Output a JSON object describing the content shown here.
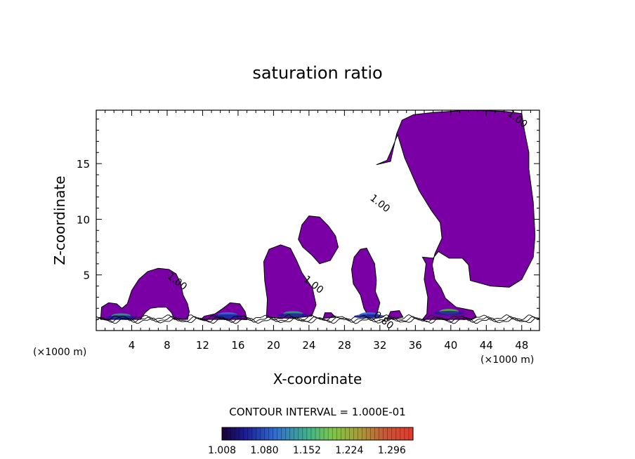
{
  "chart_data": {
    "type": "contour",
    "title": "saturation ratio",
    "xlabel": "X-coordinate",
    "ylabel": "Z-coordinate",
    "x_unit": "(×1000 m)",
    "z_unit": "(×1000 m)",
    "xlim": [
      0,
      50
    ],
    "ylim": [
      0,
      19.8
    ],
    "x_ticks": [
      4,
      8,
      12,
      16,
      20,
      24,
      28,
      32,
      36,
      40,
      44,
      48
    ],
    "y_ticks": [
      5,
      10,
      15
    ],
    "contour_interval_text": "CONTOUR INTERVAL = 1.000E-01",
    "contour_labels": [
      {
        "text": "1.00",
        "x": 8.9,
        "z": 4.2
      },
      {
        "text": "1.00",
        "x": 24.3,
        "z": 3.9
      },
      {
        "text": "1.00",
        "x": 31.8,
        "z": 11.2
      },
      {
        "text": "1.00",
        "x": 47.3,
        "z": 18.8
      },
      {
        "text": "0.80",
        "x": 32.2,
        "z": 0.7
      }
    ],
    "colorbar": {
      "min": 1.008,
      "max": 1.332,
      "tick_labels": [
        "1.008",
        "1.080",
        "1.152",
        "1.224",
        "1.296"
      ],
      "fill_color": "#7a00a6"
    },
    "regions": [
      {
        "name": "cloud-1",
        "outline": [
          [
            0.5,
            1.0
          ],
          [
            0.6,
            2.1
          ],
          [
            1.4,
            2.5
          ],
          [
            2.3,
            2.4
          ],
          [
            2.9,
            2.0
          ],
          [
            3.5,
            2.4
          ],
          [
            4.0,
            3.6
          ],
          [
            4.8,
            4.6
          ],
          [
            5.8,
            5.3
          ],
          [
            7.0,
            5.6
          ],
          [
            8.2,
            5.5
          ],
          [
            9.0,
            5.1
          ],
          [
            9.5,
            4.3
          ],
          [
            9.8,
            3.2
          ],
          [
            10.3,
            2.4
          ],
          [
            10.5,
            1.7
          ],
          [
            10.3,
            1.0
          ],
          [
            8.8,
            1.0
          ],
          [
            8.5,
            1.6
          ],
          [
            7.9,
            2.1
          ],
          [
            7.0,
            2.1
          ],
          [
            6.1,
            2.0
          ],
          [
            5.5,
            1.6
          ],
          [
            5.0,
            1.0
          ]
        ]
      },
      {
        "name": "cloud-2",
        "outline": [
          [
            11.8,
            1.0
          ],
          [
            12.2,
            1.3
          ],
          [
            13.4,
            1.5
          ],
          [
            14.3,
            2.0
          ],
          [
            15.1,
            2.5
          ],
          [
            16.2,
            2.4
          ],
          [
            16.8,
            1.7
          ],
          [
            17.0,
            1.0
          ]
        ]
      },
      {
        "name": "cloud-3",
        "outline": [
          [
            19.2,
            1.2
          ],
          [
            19.3,
            2.8
          ],
          [
            19.0,
            4.5
          ],
          [
            18.9,
            6.2
          ],
          [
            19.5,
            7.3
          ],
          [
            20.8,
            7.7
          ],
          [
            21.9,
            7.4
          ],
          [
            22.6,
            6.3
          ],
          [
            23.2,
            5.2
          ],
          [
            24.4,
            3.8
          ],
          [
            24.8,
            2.3
          ],
          [
            24.3,
            1.3
          ],
          [
            22.0,
            1.1
          ]
        ]
      },
      {
        "name": "cloud-4",
        "outline": [
          [
            22.8,
            8.2
          ],
          [
            23.2,
            9.5
          ],
          [
            24.0,
            10.3
          ],
          [
            25.2,
            10.2
          ],
          [
            26.2,
            9.4
          ],
          [
            27.0,
            8.5
          ],
          [
            27.3,
            7.5
          ],
          [
            26.4,
            6.3
          ],
          [
            25.2,
            6.0
          ],
          [
            24.3,
            6.8
          ],
          [
            23.3,
            7.5
          ]
        ]
      },
      {
        "name": "cloud-5",
        "outline": [
          [
            28.8,
            5.5
          ],
          [
            29.0,
            4.2
          ],
          [
            29.8,
            3.2
          ],
          [
            30.2,
            2.0
          ],
          [
            30.7,
            1.3
          ],
          [
            31.6,
            1.3
          ],
          [
            32.0,
            2.5
          ],
          [
            31.5,
            3.5
          ],
          [
            31.6,
            4.5
          ],
          [
            31.4,
            6.0
          ],
          [
            30.5,
            7.4
          ],
          [
            29.8,
            7.3
          ],
          [
            29.1,
            6.6
          ]
        ]
      },
      {
        "name": "cloud-6",
        "outline": [
          [
            25.6,
            1.1
          ],
          [
            25.8,
            1.6
          ],
          [
            26.5,
            1.6
          ],
          [
            27.0,
            1.2
          ]
        ]
      },
      {
        "name": "cloud-7",
        "outline": [
          [
            32.8,
            1.0
          ],
          [
            33.2,
            1.7
          ],
          [
            34.2,
            1.8
          ],
          [
            34.6,
            1.2
          ]
        ]
      },
      {
        "name": "cloud-8",
        "outline": [
          [
            36.8,
            1.0
          ],
          [
            37.3,
            1.5
          ],
          [
            37.4,
            3.0
          ],
          [
            37.0,
            4.6
          ],
          [
            37.2,
            6.0
          ],
          [
            36.8,
            6.6
          ],
          [
            38.0,
            6.5
          ],
          [
            38.6,
            7.1
          ],
          [
            39.8,
            6.5
          ],
          [
            41.3,
            6.5
          ],
          [
            42.0,
            5.9
          ],
          [
            42.2,
            4.5
          ],
          [
            44.5,
            4.0
          ],
          [
            46.6,
            3.9
          ],
          [
            48.0,
            4.6
          ],
          [
            49.3,
            6.6
          ],
          [
            49.5,
            8.5
          ],
          [
            49.3,
            11.5
          ],
          [
            48.8,
            14.5
          ],
          [
            48.8,
            16.0
          ],
          [
            48.3,
            18.0
          ],
          [
            48.0,
            19.5
          ],
          [
            46.0,
            19.7
          ],
          [
            42.0,
            19.8
          ],
          [
            38.0,
            19.6
          ],
          [
            35.8,
            19.4
          ],
          [
            34.5,
            18.9
          ],
          [
            33.9,
            17.7
          ],
          [
            33.5,
            16.3
          ],
          [
            33.2,
            15.2
          ],
          [
            31.6,
            14.9
          ],
          [
            32.8,
            15.3
          ],
          [
            33.3,
            16.2
          ],
          [
            34.0,
            17.6
          ],
          [
            34.8,
            15.5
          ],
          [
            36.4,
            12.6
          ],
          [
            37.8,
            10.8
          ],
          [
            38.8,
            9.7
          ],
          [
            39.0,
            8.3
          ],
          [
            38.2,
            6.9
          ],
          [
            37.9,
            5.9
          ],
          [
            38.2,
            4.6
          ],
          [
            38.9,
            3.8
          ],
          [
            39.4,
            2.9
          ],
          [
            40.6,
            2.1
          ],
          [
            42.5,
            1.8
          ],
          [
            42.9,
            1.2
          ],
          [
            42.4,
            1.0
          ]
        ]
      }
    ],
    "colored_cores": [
      {
        "x": 2.8,
        "z": 1.3,
        "color": "#2f9b80"
      },
      {
        "x": 14.8,
        "z": 1.4,
        "color": "#2b6fd0"
      },
      {
        "x": 22.2,
        "z": 1.5,
        "color": "#2f9b80"
      },
      {
        "x": 30.8,
        "z": 1.4,
        "color": "#2b6fd0"
      },
      {
        "x": 39.8,
        "z": 1.7,
        "color": "#4fae48"
      }
    ],
    "near_surface_lines": [
      0.9,
      1.0,
      1.15
    ]
  }
}
